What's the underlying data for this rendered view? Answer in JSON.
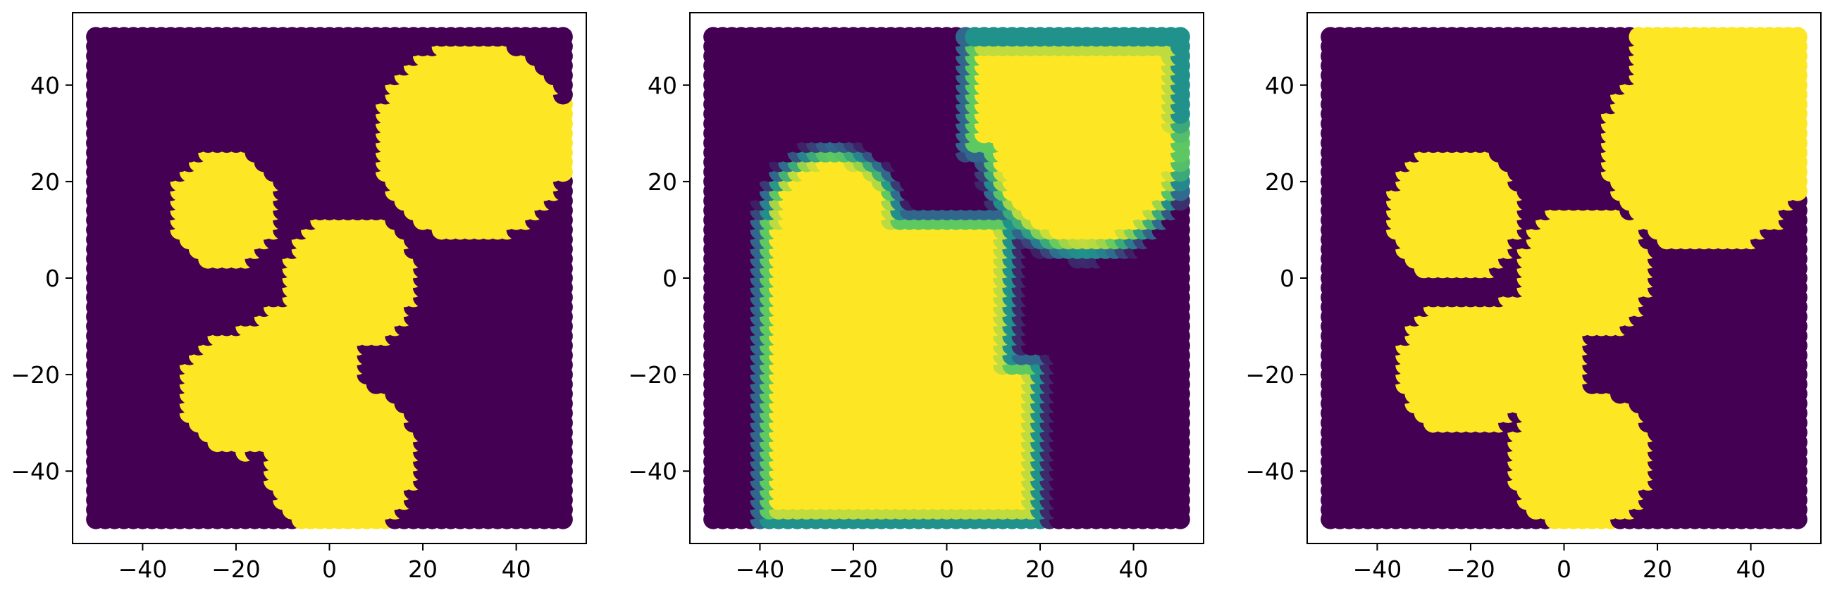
{
  "figure": {
    "background": "#ffffff",
    "colormap": "viridis",
    "colors": {
      "low": "#440154",
      "mid_low": "#31688e",
      "mid": "#21918c",
      "mid_high": "#5ec962",
      "high": "#fde725"
    }
  },
  "chart_data": [
    {
      "type": "scatter",
      "title": "",
      "xlabel": "",
      "ylabel": "",
      "xlim": [
        -55,
        55
      ],
      "ylim": [
        -55,
        55
      ],
      "xticks": [
        -40,
        -20,
        0,
        20,
        40
      ],
      "yticks": [
        -40,
        -20,
        0,
        20,
        40
      ],
      "xtick_labels": [
        "−40",
        "−20",
        "0",
        "20",
        "40"
      ],
      "ytick_labels": [
        "−40",
        "−20",
        "0",
        "20",
        "40"
      ],
      "grid": false,
      "legend": "none",
      "points": "grid of points spaced 2 units from -50 to 50 on both axes, colored 0 (purple) or 1 (yellow)",
      "regions": [
        {
          "shape": "circle",
          "center": [
            31,
            29
          ],
          "radius": 21,
          "value": 1
        },
        {
          "shape": "circle",
          "center": [
            -22,
            15
          ],
          "radius": 12,
          "value": 1
        },
        {
          "shape": "circle",
          "center": [
            5,
            0
          ],
          "radius": 14,
          "value": 1
        },
        {
          "shape": "circle",
          "center": [
            -18,
            -23
          ],
          "radius": 13,
          "value": 1
        },
        {
          "shape": "circle",
          "center": [
            -6,
            -17
          ],
          "radius": 13,
          "value": 1
        },
        {
          "shape": "circle",
          "center": [
            3,
            -37
          ],
          "radius": 16,
          "value": 1
        }
      ]
    },
    {
      "type": "scatter",
      "title": "",
      "xlabel": "",
      "ylabel": "",
      "xlim": [
        -55,
        55
      ],
      "ylim": [
        -55,
        55
      ],
      "xticks": [
        -40,
        -20,
        0,
        20,
        40
      ],
      "yticks": [
        -40,
        -20,
        0,
        20,
        40
      ],
      "xtick_labels": [
        "−40",
        "−20",
        "0",
        "20",
        "40"
      ],
      "ytick_labels": [
        "−40",
        "−20",
        "0",
        "20",
        "40"
      ],
      "grid": false,
      "legend": "none",
      "points": "grid of points spaced 2 units from -50 to 50, continuous values 0 to 1 with intermediate (green/teal) values along region boundaries",
      "regions": [
        {
          "shape": "circle",
          "center": [
            30,
            27
          ],
          "radius": 21,
          "value": 1
        },
        {
          "shape": "rect",
          "x": [
            5,
            50
          ],
          "y": [
            27,
            50
          ],
          "value": 1
        },
        {
          "shape": "circle",
          "center": [
            -24,
            13
          ],
          "radius": 14,
          "value": 1
        },
        {
          "shape": "rect",
          "x": [
            -39,
            14
          ],
          "y": [
            -50,
            13
          ],
          "value": 1
        },
        {
          "shape": "rect",
          "x": [
            0,
            20
          ],
          "y": [
            -50,
            -17
          ],
          "value": 1
        }
      ]
    },
    {
      "type": "scatter",
      "title": "",
      "xlabel": "",
      "ylabel": "",
      "xlim": [
        -55,
        55
      ],
      "ylim": [
        -55,
        55
      ],
      "xticks": [
        -40,
        -20,
        0,
        20,
        40
      ],
      "yticks": [
        -40,
        -20,
        0,
        20,
        40
      ],
      "xtick_labels": [
        "−40",
        "−20",
        "0",
        "20",
        "40"
      ],
      "ytick_labels": [
        "−40",
        "−20",
        "0",
        "20",
        "40"
      ],
      "grid": false,
      "legend": "none",
      "points": "grid of points spaced 2 units from -50 to 50, colored 0 (purple) or 1 (yellow)",
      "regions": [
        {
          "shape": "circle",
          "center": [
            31,
            28
          ],
          "radius": 22,
          "value": 1
        },
        {
          "shape": "rect",
          "x": [
            15,
            50
          ],
          "y": [
            35,
            50
          ],
          "value": 1
        },
        {
          "shape": "circle",
          "center": [
            -23,
            14
          ],
          "radius": 14,
          "value": 1
        },
        {
          "shape": "circle",
          "center": [
            5,
            2
          ],
          "radius": 14,
          "value": 1
        },
        {
          "shape": "circle",
          "center": [
            -21,
            -18
          ],
          "radius": 14,
          "value": 1
        },
        {
          "shape": "circle",
          "center": [
            -7,
            -15
          ],
          "radius": 13,
          "value": 1
        },
        {
          "shape": "circle",
          "center": [
            4,
            -37
          ],
          "radius": 15,
          "value": 1
        }
      ]
    }
  ]
}
